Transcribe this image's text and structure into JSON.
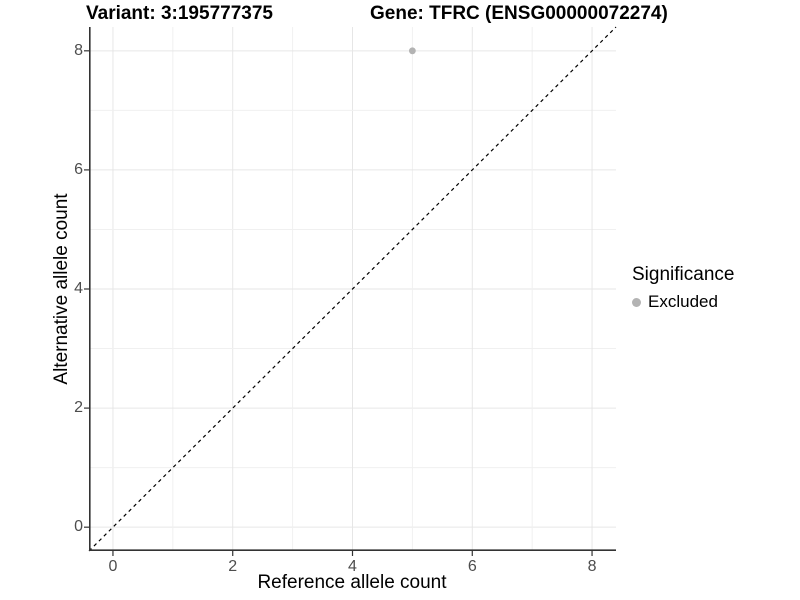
{
  "titles": {
    "left": "Variant: 3:195777375",
    "right": "Gene: TFRC (ENSG00000072274)"
  },
  "chart_data": {
    "type": "scatter",
    "title": "Variant: 3:195777375    Gene: TFRC (ENSG00000072274)",
    "xlabel": "Reference allele count",
    "ylabel": "Alternative allele count",
    "xlim": [
      -0.4,
      8.4
    ],
    "ylim": [
      -0.4,
      8.4
    ],
    "xticks": [
      0,
      2,
      4,
      6,
      8
    ],
    "yticks": [
      0,
      2,
      4,
      6,
      8
    ],
    "grid": {
      "shown": true,
      "interval": 1,
      "major_interval": 2
    },
    "diagonal_line": {
      "style": "dashed",
      "color": "#000000",
      "from": [
        -0.4,
        -0.4
      ],
      "to": [
        8.4,
        8.4
      ]
    },
    "series": [
      {
        "name": "Excluded",
        "points": [
          {
            "x": 5,
            "y": 8
          }
        ],
        "color": "#b3b3b3"
      }
    ],
    "legend": {
      "title": "Significance",
      "position": "right",
      "entries": [
        {
          "label": "Excluded",
          "marker": "circle",
          "color": "#b3b3b3"
        }
      ]
    }
  },
  "colors": {
    "background": "#ffffff",
    "axis_line": "#333333",
    "tick_mark": "#333333",
    "tick_text": "#4d4d4d",
    "grid_major": "#e6e6e6",
    "grid_minor": "#f0f0f0",
    "point": "#b3b3b3",
    "diagonal": "#000000",
    "text": "#000000"
  }
}
